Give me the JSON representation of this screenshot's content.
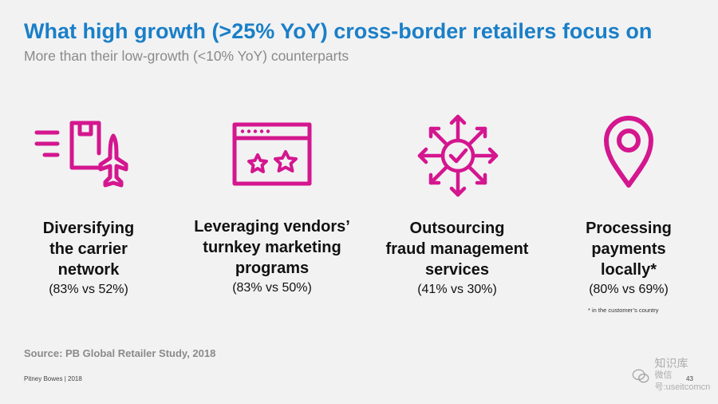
{
  "title": "What high growth (>25% YoY) cross-border retailers focus on",
  "subtitle": "More than their low-growth (<10% YoY) counterparts",
  "accent_color": "#d4168f",
  "title_color": "#1a7fc8",
  "items": [
    {
      "icon": "package-airplane-icon",
      "heading": "Diversifying\nthe carrier\nnetwork",
      "stat": "(83% vs 52%)"
    },
    {
      "icon": "browser-stars-icon",
      "heading": "Leveraging vendors’\nturnkey marketing\nprograms",
      "stat": "(83% vs 50%)"
    },
    {
      "icon": "outward-arrows-check-icon",
      "heading": "Outsourcing\nfraud management\nservices",
      "stat": "(41% vs 30%)"
    },
    {
      "icon": "location-pin-icon",
      "heading": "Processing\npayments\nlocally*",
      "stat": "(80% vs 69%)"
    }
  ],
  "footnote": "* in the customer’s country",
  "source": "Source: PB Global Retailer Study, 2018",
  "footer": "Pitney Bowes | 2018",
  "page_number": "43",
  "watermark": {
    "line1": "知识库",
    "line2": "微信号:useitcomcn"
  }
}
